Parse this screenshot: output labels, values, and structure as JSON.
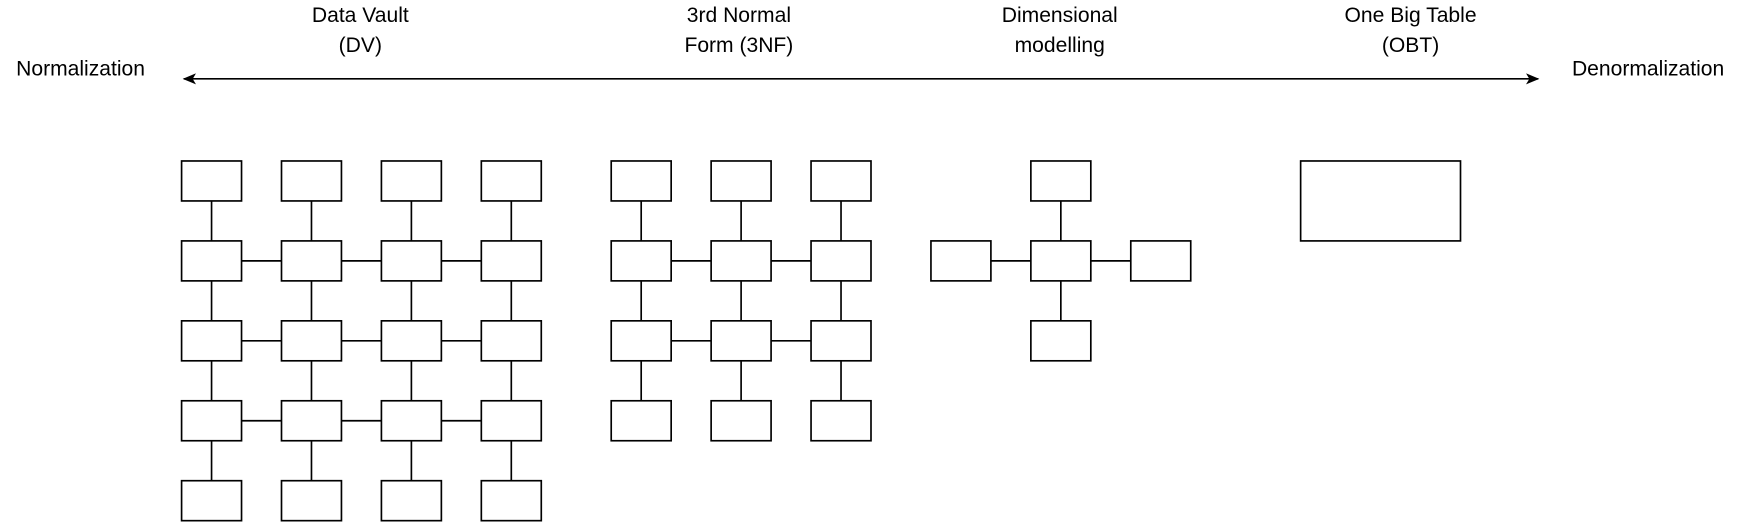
{
  "left_label": "Normalization",
  "right_label": "Denormalization",
  "headings": [
    {
      "lines": [
        "Data Vault",
        "(DV)"
      ]
    },
    {
      "lines": [
        "3rd Normal",
        "Form (3NF)"
      ]
    },
    {
      "lines": [
        "Dimensional",
        "modelling"
      ]
    },
    {
      "lines": [
        "One Big Table",
        "(OBT)"
      ]
    }
  ]
}
